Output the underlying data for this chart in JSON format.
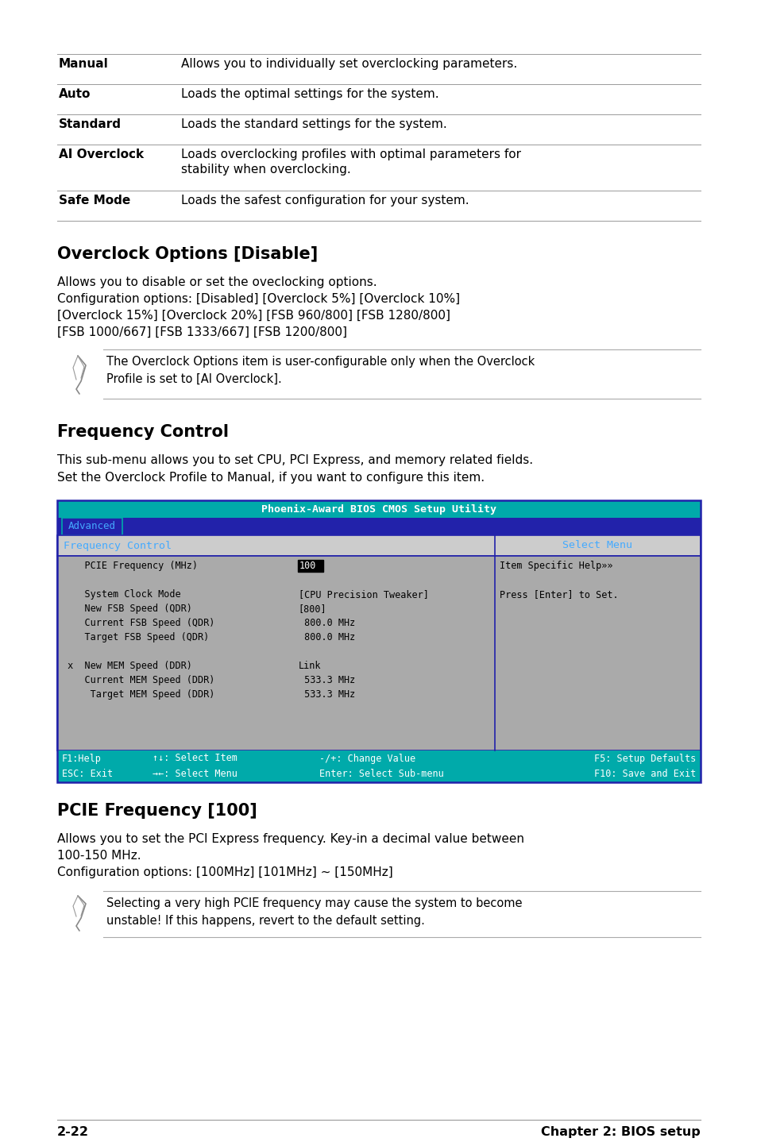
{
  "bg_color": "#ffffff",
  "table_rows": [
    {
      "term": "Manual",
      "desc": "Allows you to individually set overclocking parameters."
    },
    {
      "term": "Auto",
      "desc": "Loads the optimal settings for the system."
    },
    {
      "term": "Standard",
      "desc": "Loads the standard settings for the system."
    },
    {
      "term": "AI Overclock",
      "desc": "Loads overclocking profiles with optimal parameters for\nstability when overclocking."
    },
    {
      "term": "Safe Mode",
      "desc": "Loads the safest configuration for your system."
    }
  ],
  "section1_title": "Overclock Options [Disable]",
  "section1_body": [
    "Allows you to disable or set the oveclocking options.",
    "Configuration options: [Disabled] [Overclock 5%] [Overclock 10%]",
    "[Overclock 15%] [Overclock 20%] [FSB 960/800] [FSB 1280/800]",
    "[FSB 1000/667] [FSB 1333/667] [FSB 1200/800]"
  ],
  "note1": "The Overclock Options item is user-configurable only when the Overclock\nProfile is set to [AI Overclock].",
  "section2_title": "Frequency Control",
  "section2_body": [
    "This sub-menu allows you to set CPU, PCI Express, and memory related fields.",
    "Set the Overclock Profile to Manual, if you want to configure this item."
  ],
  "bios_title": "Phoenix-Award BIOS CMOS Setup Utility",
  "bios_tab": "Advanced",
  "bios_header_left": "Frequency Control",
  "bios_header_right": "Select Menu",
  "bios_rows": [
    {
      "left": "    PCIE Frequency (MHz)",
      "mid": "100",
      "right": "Item Specific Help»»",
      "highlight_mid": true
    },
    {
      "left": "",
      "mid": "",
      "right": "",
      "highlight_mid": false
    },
    {
      "left": "    System Clock Mode",
      "mid": "[CPU Precision Tweaker]",
      "right": "Press [Enter] to Set.",
      "highlight_mid": false
    },
    {
      "left": "    New FSB Speed (QDR)",
      "mid": "[800]",
      "right": "",
      "highlight_mid": false
    },
    {
      "left": "    Current FSB Speed (QDR)",
      "mid": " 800.0 MHz",
      "right": "",
      "highlight_mid": false
    },
    {
      "left": "    Target FSB Speed (QDR)",
      "mid": " 800.0 MHz",
      "right": "",
      "highlight_mid": false
    },
    {
      "left": "",
      "mid": "",
      "right": "",
      "highlight_mid": false
    },
    {
      "left": " x  New MEM Speed (DDR)",
      "mid": "Link",
      "right": "",
      "highlight_mid": false
    },
    {
      "left": "    Current MEM Speed (DDR)",
      "mid": " 533.3 MHz",
      "right": "",
      "highlight_mid": false
    },
    {
      "left": "     Target MEM Speed (DDR)",
      "mid": " 533.3 MHz",
      "right": "",
      "highlight_mid": false
    }
  ],
  "bios_footer": [
    {
      "left": "F1:Help",
      "mid1": "↑↓: Select Item",
      "mid2": "-/+: Change Value",
      "right": "F5: Setup Defaults"
    },
    {
      "left": "ESC: Exit",
      "mid1": "→←: Select Menu",
      "mid2": "Enter: Select Sub-menu",
      "right": "F10: Save and Exit"
    }
  ],
  "bios_title_bg": "#00aaaa",
  "bios_tab_bg": "#2222aa",
  "bios_tab_text_color": "#44aaff",
  "bios_header_bg": "#cccccc",
  "bios_body_bg": "#aaaaaa",
  "bios_footer_bg": "#00aaaa",
  "bios_border_color": "#2222aa",
  "section3_title": "PCIE Frequency [100]",
  "section3_body": [
    "Allows you to set the PCI Express frequency. Key-in a decimal value between",
    "100-150 MHz.",
    "Configuration options: [100MHz] [101MHz] ~ [150MHz]"
  ],
  "note2": "Selecting a very high PCIE frequency may cause the system to become\nunstable! If this happens, revert to the default setting.",
  "footer_left": "2-22",
  "footer_right": "Chapter 2: BIOS setup"
}
